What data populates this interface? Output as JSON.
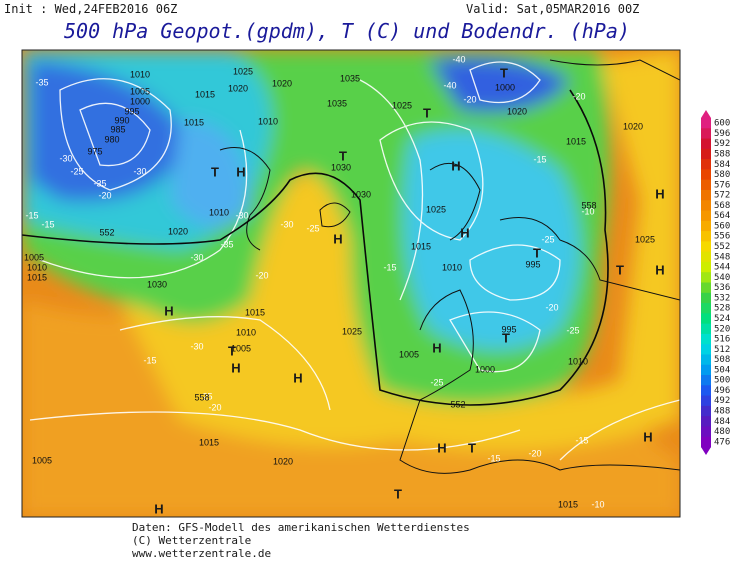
{
  "header": {
    "init": "Init : Wed,24FEB2016 06Z",
    "valid": "Valid: Sat,05MAR2016 00Z",
    "title": "500 hPa Geopot.(gpdm), T (C) und Bodendr. (hPa)"
  },
  "scale": {
    "labels": [
      "600",
      "596",
      "592",
      "588",
      "584",
      "580",
      "576",
      "572",
      "568",
      "564",
      "560",
      "556",
      "552",
      "548",
      "544",
      "540",
      "536",
      "532",
      "528",
      "524",
      "520",
      "516",
      "512",
      "508",
      "504",
      "500",
      "496",
      "492",
      "488",
      "484",
      "480",
      "476"
    ]
  },
  "map": {
    "markers": [
      "T",
      "T",
      "T",
      "H",
      "T",
      "H",
      "H",
      "H",
      "T",
      "H",
      "T",
      "H",
      "H",
      "H",
      "T",
      "H",
      "T",
      "H",
      "H",
      "T",
      "H",
      "T",
      "H"
    ],
    "isobar_labels": [
      "1010",
      "1005",
      "1000",
      "995",
      "990",
      "985",
      "980",
      "975",
      "1015",
      "1025",
      "1020",
      "1035",
      "1025",
      "1035",
      "1010",
      "1020",
      "1015",
      "1030",
      "1010",
      "1030",
      "1025",
      "1015",
      "1010",
      "1020",
      "995",
      "1005",
      "1030",
      "1015",
      "1010",
      "1005",
      "1025",
      "1015",
      "1020",
      "1005",
      "1000",
      "995",
      "1010",
      "1015",
      "1020",
      "1025",
      "1020",
      "1000",
      "1005",
      "1015",
      "1010",
      "1015"
    ],
    "temperature_labels": [
      "-35",
      "-40",
      "-30",
      "-25",
      "-20",
      "-30",
      "-35",
      "-40",
      "-30",
      "-35",
      "-30",
      "-25",
      "-30",
      "-20",
      "-25",
      "-20",
      "-15",
      "-15",
      "-25",
      "-20",
      "-10",
      "-15",
      "-15",
      "-20",
      "-15",
      "-30",
      "-25",
      "-15",
      "-10",
      "-20",
      "-15",
      "-20",
      "-25"
    ],
    "contour_labels": [
      "552",
      "558",
      "552",
      "558"
    ]
  },
  "footer": {
    "lines": [
      "Daten: GFS-Modell des amerikanischen Wetterdienstes",
      "(C) Wetterzentrale",
      "www.wetterzentrale.de"
    ]
  }
}
